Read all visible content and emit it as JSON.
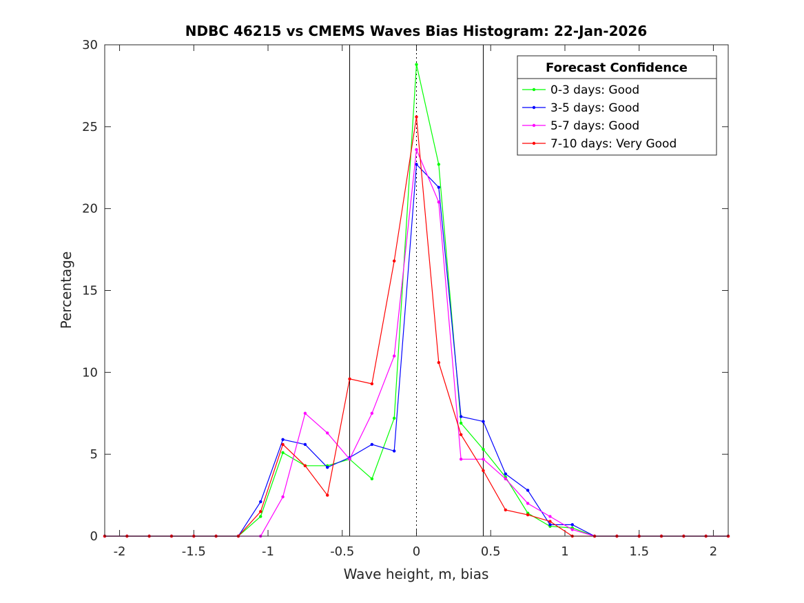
{
  "chart_data": {
    "type": "line",
    "title": "NDBC 46215 vs CMEMS Waves Bias Histogram: 22-Jan-2026",
    "xlabel": "Wave height, m, bias",
    "ylabel": "Percentage",
    "xlim": [
      -2.1,
      2.1
    ],
    "ylim": [
      0,
      30
    ],
    "xticks": [
      -2,
      -1.5,
      -1,
      -0.5,
      0,
      0.5,
      1,
      1.5,
      2
    ],
    "xtick_labels": [
      "-2",
      "-1.5",
      "-1",
      "-0.5",
      "0",
      "0.5",
      "1",
      "1.5",
      "2"
    ],
    "yticks": [
      0,
      5,
      10,
      15,
      20,
      25,
      30
    ],
    "ytick_labels": [
      "0",
      "5",
      "10",
      "15",
      "20",
      "25",
      "30"
    ],
    "reference_lines": {
      "solid": [
        -0.45,
        0.45
      ],
      "dotted": [
        0
      ]
    },
    "legend": {
      "title": "Forecast Confidence",
      "location": "top-right"
    },
    "x": [
      -2.1,
      -1.95,
      -1.8,
      -1.65,
      -1.5,
      -1.35,
      -1.2,
      -1.05,
      -0.9,
      -0.75,
      -0.6,
      -0.45,
      -0.3,
      -0.15,
      0,
      0.15,
      0.3,
      0.45,
      0.6,
      0.75,
      0.9,
      1.05,
      1.2,
      1.35,
      1.5,
      1.65,
      1.8,
      1.95,
      2.1
    ],
    "series": [
      {
        "name": "0-3 days: Good",
        "color": "#00ff00",
        "values": [
          0,
          0,
          0,
          0,
          0,
          0,
          0,
          1.2,
          5.1,
          4.3,
          4.3,
          4.7,
          3.5,
          7.2,
          28.8,
          22.7,
          6.9,
          5.3,
          3.6,
          1.4,
          0.6,
          0.5,
          0,
          0,
          0,
          0,
          0,
          0,
          0
        ]
      },
      {
        "name": "3-5 days: Good",
        "color": "#0000ff",
        "values": [
          0,
          0,
          0,
          0,
          0,
          0,
          0,
          2.1,
          5.9,
          5.6,
          4.2,
          4.8,
          5.6,
          5.2,
          22.7,
          21.3,
          7.3,
          7.0,
          3.8,
          2.8,
          0.7,
          0.7,
          0,
          0,
          0,
          0,
          0,
          0,
          0
        ]
      },
      {
        "name": "5-7 days: Good",
        "color": "#ff00ff",
        "values": [
          0,
          0,
          0,
          0,
          0,
          0,
          0,
          0,
          2.4,
          7.5,
          6.3,
          4.7,
          7.5,
          11.0,
          23.6,
          20.4,
          4.7,
          4.7,
          3.5,
          2.0,
          1.2,
          0.4,
          0,
          0,
          0,
          0,
          0,
          0,
          0
        ]
      },
      {
        "name": "7-10 days: Very Good",
        "color": "#ff0000",
        "values": [
          0,
          0,
          0,
          0,
          0,
          0,
          0,
          1.5,
          5.6,
          4.3,
          2.5,
          9.6,
          9.3,
          16.8,
          25.6,
          10.6,
          6.2,
          4.0,
          1.6,
          1.3,
          0.9,
          0,
          0,
          0,
          0,
          0,
          0,
          0,
          0
        ]
      }
    ]
  }
}
